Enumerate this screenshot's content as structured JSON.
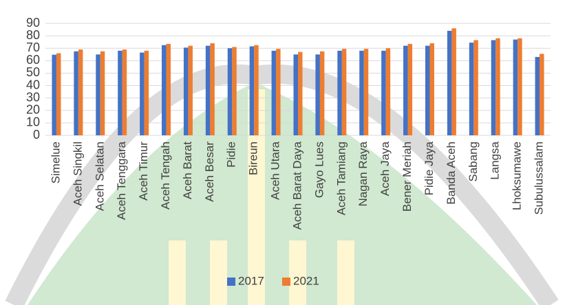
{
  "chart_data": {
    "type": "bar",
    "categories": [
      "Simelue",
      "Aceh Singkil",
      "Aceh Selatan",
      "Aceh Tenggara",
      "Aceh Timur",
      "Aceh Tengah",
      "Aceh Barat",
      "Aceh Besar",
      "Pidie",
      "Bireun",
      "Aceh Utara",
      "Aceh Barat Daya",
      "Gayo Lues",
      "Aceh Tamiang",
      "Nagan Raya",
      "Aceh Jaya",
      "Bener Meriah",
      "Pidie Jaya",
      "Banda Aceh",
      "Sabang",
      "Langsa",
      "Lhoksumawe",
      "Subulussalam"
    ],
    "series": [
      {
        "name": "2017",
        "color": "#4472c4",
        "values": [
          64.8,
          67.5,
          65,
          68,
          66.5,
          72.5,
          70.5,
          72,
          70,
          71.5,
          68,
          65,
          65,
          68,
          68,
          68,
          72,
          72,
          84,
          74.5,
          76.5,
          77,
          63
        ]
      },
      {
        "name": "2021",
        "color": "#ed7d31",
        "values": [
          66,
          69,
          67.5,
          69,
          68,
          73.5,
          72,
          74,
          71,
          72.5,
          69.5,
          67,
          67.5,
          69.5,
          69.5,
          70,
          73.5,
          74,
          86,
          76.5,
          78,
          78,
          65.5
        ]
      }
    ],
    "ylim": [
      0,
      90
    ],
    "yticks": [
      0,
      10,
      20,
      30,
      40,
      50,
      60,
      70,
      80,
      90
    ],
    "grid": true,
    "legend": "bottom"
  }
}
